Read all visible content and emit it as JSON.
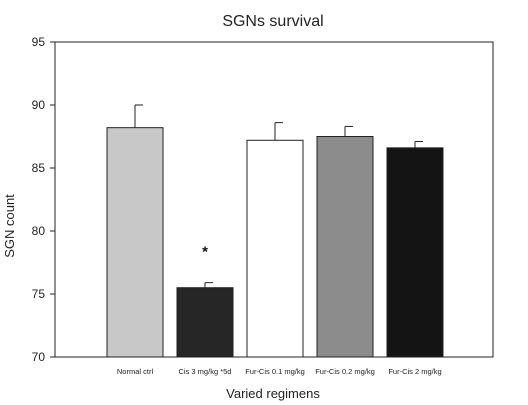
{
  "chart_data": {
    "type": "bar",
    "title": "SGNs survival",
    "xlabel": "Varied regimens",
    "ylabel": "SGN count",
    "ylim": [
      70,
      95
    ],
    "yticks": [
      70,
      75,
      80,
      85,
      90,
      95
    ],
    "grid": false,
    "categories": [
      "Normal ctrl",
      "Cis 3 mg/kg *5d",
      "Fur-Cis 0.1 mg/kg",
      "Fur-Cis 0.2 mg/kg",
      "Fur-Cis 2 mg/kg"
    ],
    "values": [
      88.2,
      75.5,
      87.2,
      87.5,
      86.6
    ],
    "errors": [
      1.8,
      0.4,
      1.4,
      0.8,
      0.5
    ],
    "bar_colors": [
      "#c8c8c8",
      "#262626",
      "#ffffff",
      "#8c8c8c",
      "#141414"
    ],
    "annotations": [
      {
        "category_index": 1,
        "text": "*"
      }
    ]
  }
}
